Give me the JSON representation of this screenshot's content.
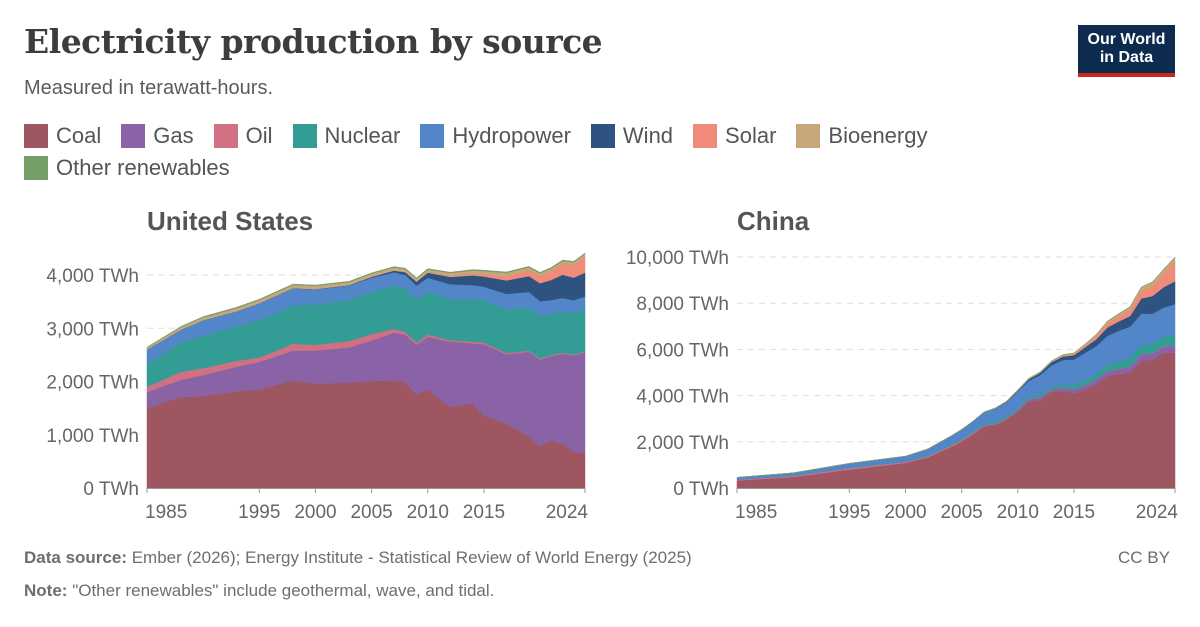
{
  "header": {
    "title": "Electricity production by source",
    "subtitle": "Measured in terawatt-hours.",
    "logo": "Our World in Data"
  },
  "legend": [
    {
      "name": "Coal",
      "color": "#9e5660"
    },
    {
      "name": "Gas",
      "color": "#8a63a7"
    },
    {
      "name": "Oil",
      "color": "#cf7083"
    },
    {
      "name": "Nuclear",
      "color": "#339c94"
    },
    {
      "name": "Hydropower",
      "color": "#5386c8"
    },
    {
      "name": "Wind",
      "color": "#2f5380"
    },
    {
      "name": "Solar",
      "color": "#ef8b78"
    },
    {
      "name": "Bioenergy",
      "color": "#c8a67c"
    },
    {
      "name": "Other renewables",
      "color": "#739f67"
    }
  ],
  "footer": {
    "source_label": "Data source:",
    "source": "Ember (2026); Energy Institute - Statistical Review of World Energy (2025)",
    "note_label": "Note:",
    "note": "\"Other renewables\" include geothermal, wave, and tidal.",
    "license": "CC BY"
  },
  "chart_data": [
    {
      "type": "area",
      "title": "United States",
      "ylabel": "TWh",
      "ylim": [
        0,
        4000
      ],
      "xlim": [
        1985,
        2024
      ],
      "yticks": [
        0,
        1000,
        2000,
        3000,
        4000
      ],
      "ytick_labels": [
        "0 TWh",
        "1,000 TWh",
        "2,000 TWh",
        "3,000 TWh",
        "4,000 TWh"
      ],
      "xticks": [
        1985,
        1995,
        2000,
        2005,
        2010,
        2015,
        2024
      ],
      "xtick_labels": [
        "1985",
        "1995",
        "2000",
        "2005",
        "2010",
        "2015",
        "2024"
      ],
      "x": [
        1985,
        1988,
        1990,
        1993,
        1995,
        1998,
        2000,
        2003,
        2005,
        2007,
        2008,
        2009,
        2010,
        2012,
        2014,
        2015,
        2017,
        2019,
        2020,
        2021,
        2022,
        2023,
        2024
      ],
      "series": [
        {
          "name": "Coal",
          "values": [
            1500,
            1710,
            1720,
            1820,
            1850,
            2020,
            1960,
            1980,
            2010,
            2020,
            1990,
            1760,
            1850,
            1520,
            1590,
            1360,
            1210,
            970,
            780,
            900,
            830,
            680,
            660
          ]
        },
        {
          "name": "Gas",
          "values": [
            300,
            320,
            400,
            460,
            520,
            560,
            620,
            660,
            760,
            900,
            890,
            930,
            990,
            1230,
            1130,
            1340,
            1300,
            1590,
            1630,
            1580,
            1690,
            1810,
            1890
          ]
        },
        {
          "name": "Oil",
          "values": [
            100,
            150,
            130,
            110,
            80,
            130,
            110,
            120,
            120,
            70,
            50,
            40,
            40,
            25,
            30,
            30,
            25,
            20,
            18,
            20,
            20,
            16,
            16
          ]
        },
        {
          "name": "Nuclear",
          "values": [
            420,
            560,
            610,
            650,
            700,
            720,
            760,
            770,
            790,
            810,
            810,
            800,
            810,
            770,
            800,
            800,
            810,
            810,
            790,
            780,
            775,
            780,
            785
          ]
        },
        {
          "name": "Hydropower",
          "values": [
            285,
            230,
            290,
            280,
            320,
            320,
            280,
            270,
            270,
            250,
            260,
            270,
            260,
            280,
            260,
            250,
            300,
            290,
            290,
            250,
            255,
            240,
            245
          ]
        },
        {
          "name": "Wind",
          "values": [
            0,
            2,
            3,
            3,
            3,
            4,
            6,
            11,
            18,
            35,
            55,
            74,
            95,
            140,
            182,
            191,
            254,
            300,
            338,
            378,
            435,
            425,
            450
          ]
        },
        {
          "name": "Solar",
          "values": [
            0,
            0,
            0,
            0,
            0,
            1,
            1,
            1,
            1,
            1,
            2,
            2,
            3,
            12,
            28,
            39,
            77,
            107,
            131,
            164,
            205,
            240,
            303
          ]
        },
        {
          "name": "Bioenergy",
          "values": [
            30,
            45,
            50,
            55,
            58,
            60,
            60,
            55,
            55,
            56,
            56,
            55,
            57,
            60,
            64,
            64,
            63,
            58,
            55,
            54,
            52,
            48,
            48
          ]
        },
        {
          "name": "Other renewables",
          "values": [
            10,
            14,
            16,
            17,
            14,
            15,
            14,
            14,
            15,
            15,
            15,
            15,
            15,
            16,
            17,
            17,
            17,
            17,
            17,
            17,
            17,
            17,
            17
          ]
        }
      ]
    },
    {
      "type": "area",
      "title": "China",
      "ylabel": "TWh",
      "ylim": [
        0,
        10000
      ],
      "xlim": [
        1985,
        2024
      ],
      "yticks": [
        0,
        2000,
        4000,
        6000,
        8000,
        10000
      ],
      "ytick_labels": [
        "0 TWh",
        "2,000 TWh",
        "4,000 TWh",
        "6,000 TWh",
        "8,000 TWh",
        "10,000 TWh"
      ],
      "xticks": [
        1985,
        1995,
        2000,
        2005,
        2010,
        2015,
        2024
      ],
      "xtick_labels": [
        "1985",
        "1995",
        "2000",
        "2005",
        "2010",
        "2015",
        "2024"
      ],
      "x": [
        1985,
        1990,
        1995,
        2000,
        2002,
        2004,
        2005,
        2006,
        2007,
        2008,
        2009,
        2010,
        2011,
        2012,
        2013,
        2014,
        2015,
        2016,
        2017,
        2018,
        2019,
        2020,
        2021,
        2022,
        2023,
        2024
      ],
      "series": [
        {
          "name": "Coal",
          "values": [
            320,
            470,
            790,
            1070,
            1310,
            1750,
            2000,
            2300,
            2650,
            2720,
            2950,
            3300,
            3750,
            3800,
            4150,
            4200,
            4100,
            4250,
            4500,
            4850,
            4920,
            5000,
            5500,
            5550,
            5850,
            5850
          ]
        },
        {
          "name": "Gas",
          "values": [
            5,
            5,
            10,
            20,
            20,
            30,
            30,
            40,
            50,
            40,
            50,
            70,
            100,
            110,
            115,
            130,
            150,
            190,
            200,
            210,
            230,
            250,
            290,
            270,
            290,
            300
          ]
        },
        {
          "name": "Oil",
          "values": [
            40,
            50,
            60,
            45,
            45,
            50,
            50,
            50,
            30,
            20,
            20,
            15,
            10,
            10,
            10,
            10,
            10,
            10,
            10,
            10,
            10,
            10,
            10,
            10,
            10,
            10
          ]
        },
        {
          "name": "Nuclear",
          "values": [
            0,
            0,
            13,
            17,
            25,
            50,
            53,
            55,
            62,
            68,
            70,
            74,
            86,
            97,
            112,
            133,
            171,
            213,
            248,
            295,
            348,
            366,
            408,
            418,
            435,
            450
          ]
        },
        {
          "name": "Hydropower",
          "values": [
            92,
            127,
            190,
            222,
            288,
            354,
            397,
            435,
            485,
            585,
            616,
            722,
            700,
            872,
            920,
            1064,
            1130,
            1190,
            1190,
            1230,
            1300,
            1355,
            1340,
            1300,
            1230,
            1350
          ]
        },
        {
          "name": "Wind",
          "values": [
            0,
            0,
            0,
            1,
            1,
            1,
            2,
            4,
            6,
            15,
            28,
            45,
            74,
            96,
            141,
            156,
            186,
            241,
            295,
            366,
            406,
            467,
            656,
            763,
            886,
            990
          ]
        },
        {
          "name": "Solar",
          "values": [
            0,
            0,
            0,
            0,
            0,
            0,
            0,
            0,
            0,
            0,
            0,
            1,
            3,
            6,
            15,
            29,
            45,
            75,
            131,
            177,
            225,
            261,
            327,
            427,
            584,
            834
          ]
        },
        {
          "name": "Bioenergy",
          "values": [
            0,
            0,
            0,
            2,
            2,
            2,
            2,
            5,
            10,
            14,
            21,
            25,
            30,
            33,
            38,
            45,
            53,
            65,
            80,
            93,
            112,
            136,
            164,
            183,
            197,
            210
          ]
        },
        {
          "name": "Other renewables",
          "values": [
            0,
            0,
            0,
            0,
            0,
            0,
            0,
            0,
            0,
            0,
            0,
            0,
            0,
            0,
            0,
            0,
            0,
            0,
            0,
            0,
            0,
            0,
            0,
            0,
            0,
            0
          ]
        }
      ]
    }
  ]
}
